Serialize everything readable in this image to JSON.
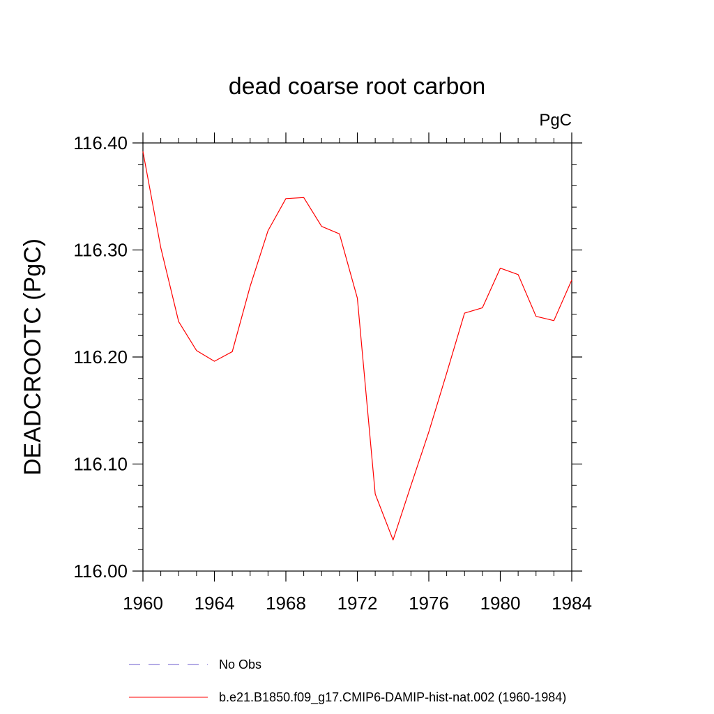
{
  "chart_data": {
    "type": "line",
    "title": "dead coarse root carbon",
    "units_label": "PgC",
    "ylabel": "DEADCROOTC  (PgC)",
    "xlabel": "",
    "xlim": [
      1960,
      1984
    ],
    "ylim": [
      116.0,
      116.4
    ],
    "x_ticks": [
      1960,
      1964,
      1968,
      1972,
      1976,
      1980,
      1984
    ],
    "x_tick_labels": [
      "1960",
      "1964",
      "1968",
      "1972",
      "1976",
      "1980",
      "1984"
    ],
    "y_ticks": [
      116.0,
      116.1,
      116.2,
      116.3,
      116.4
    ],
    "y_tick_labels": [
      "116.00",
      "116.10",
      "116.20",
      "116.30",
      "116.40"
    ],
    "x": [
      1960,
      1961,
      1962,
      1963,
      1964,
      1965,
      1966,
      1967,
      1968,
      1969,
      1970,
      1971,
      1972,
      1973,
      1974,
      1975,
      1976,
      1977,
      1978,
      1979,
      1980,
      1981,
      1982,
      1983,
      1984
    ],
    "series": [
      {
        "name": "b.e21.B1850.f09_g17.CMIP6-DAMIP-hist-nat.002 (1960-1984)",
        "color": "#ff0000",
        "dash": "solid",
        "values": [
          116.392,
          116.302,
          116.233,
          116.206,
          116.196,
          116.205,
          116.266,
          116.318,
          116.348,
          116.349,
          116.322,
          116.315,
          116.255,
          116.072,
          116.029,
          116.08,
          116.13,
          116.185,
          116.241,
          116.246,
          116.283,
          116.277,
          116.238,
          116.234,
          116.272
        ]
      }
    ],
    "legend": {
      "placement": "bottom",
      "entries": [
        {
          "label": "No Obs",
          "color": "#6a5acd",
          "dash": "dashed"
        },
        {
          "label": "b.e21.B1850.f09_g17.CMIP6-DAMIP-hist-nat.002 (1960-1984)",
          "color": "#ff0000",
          "dash": "solid"
        }
      ]
    },
    "grid": false
  }
}
